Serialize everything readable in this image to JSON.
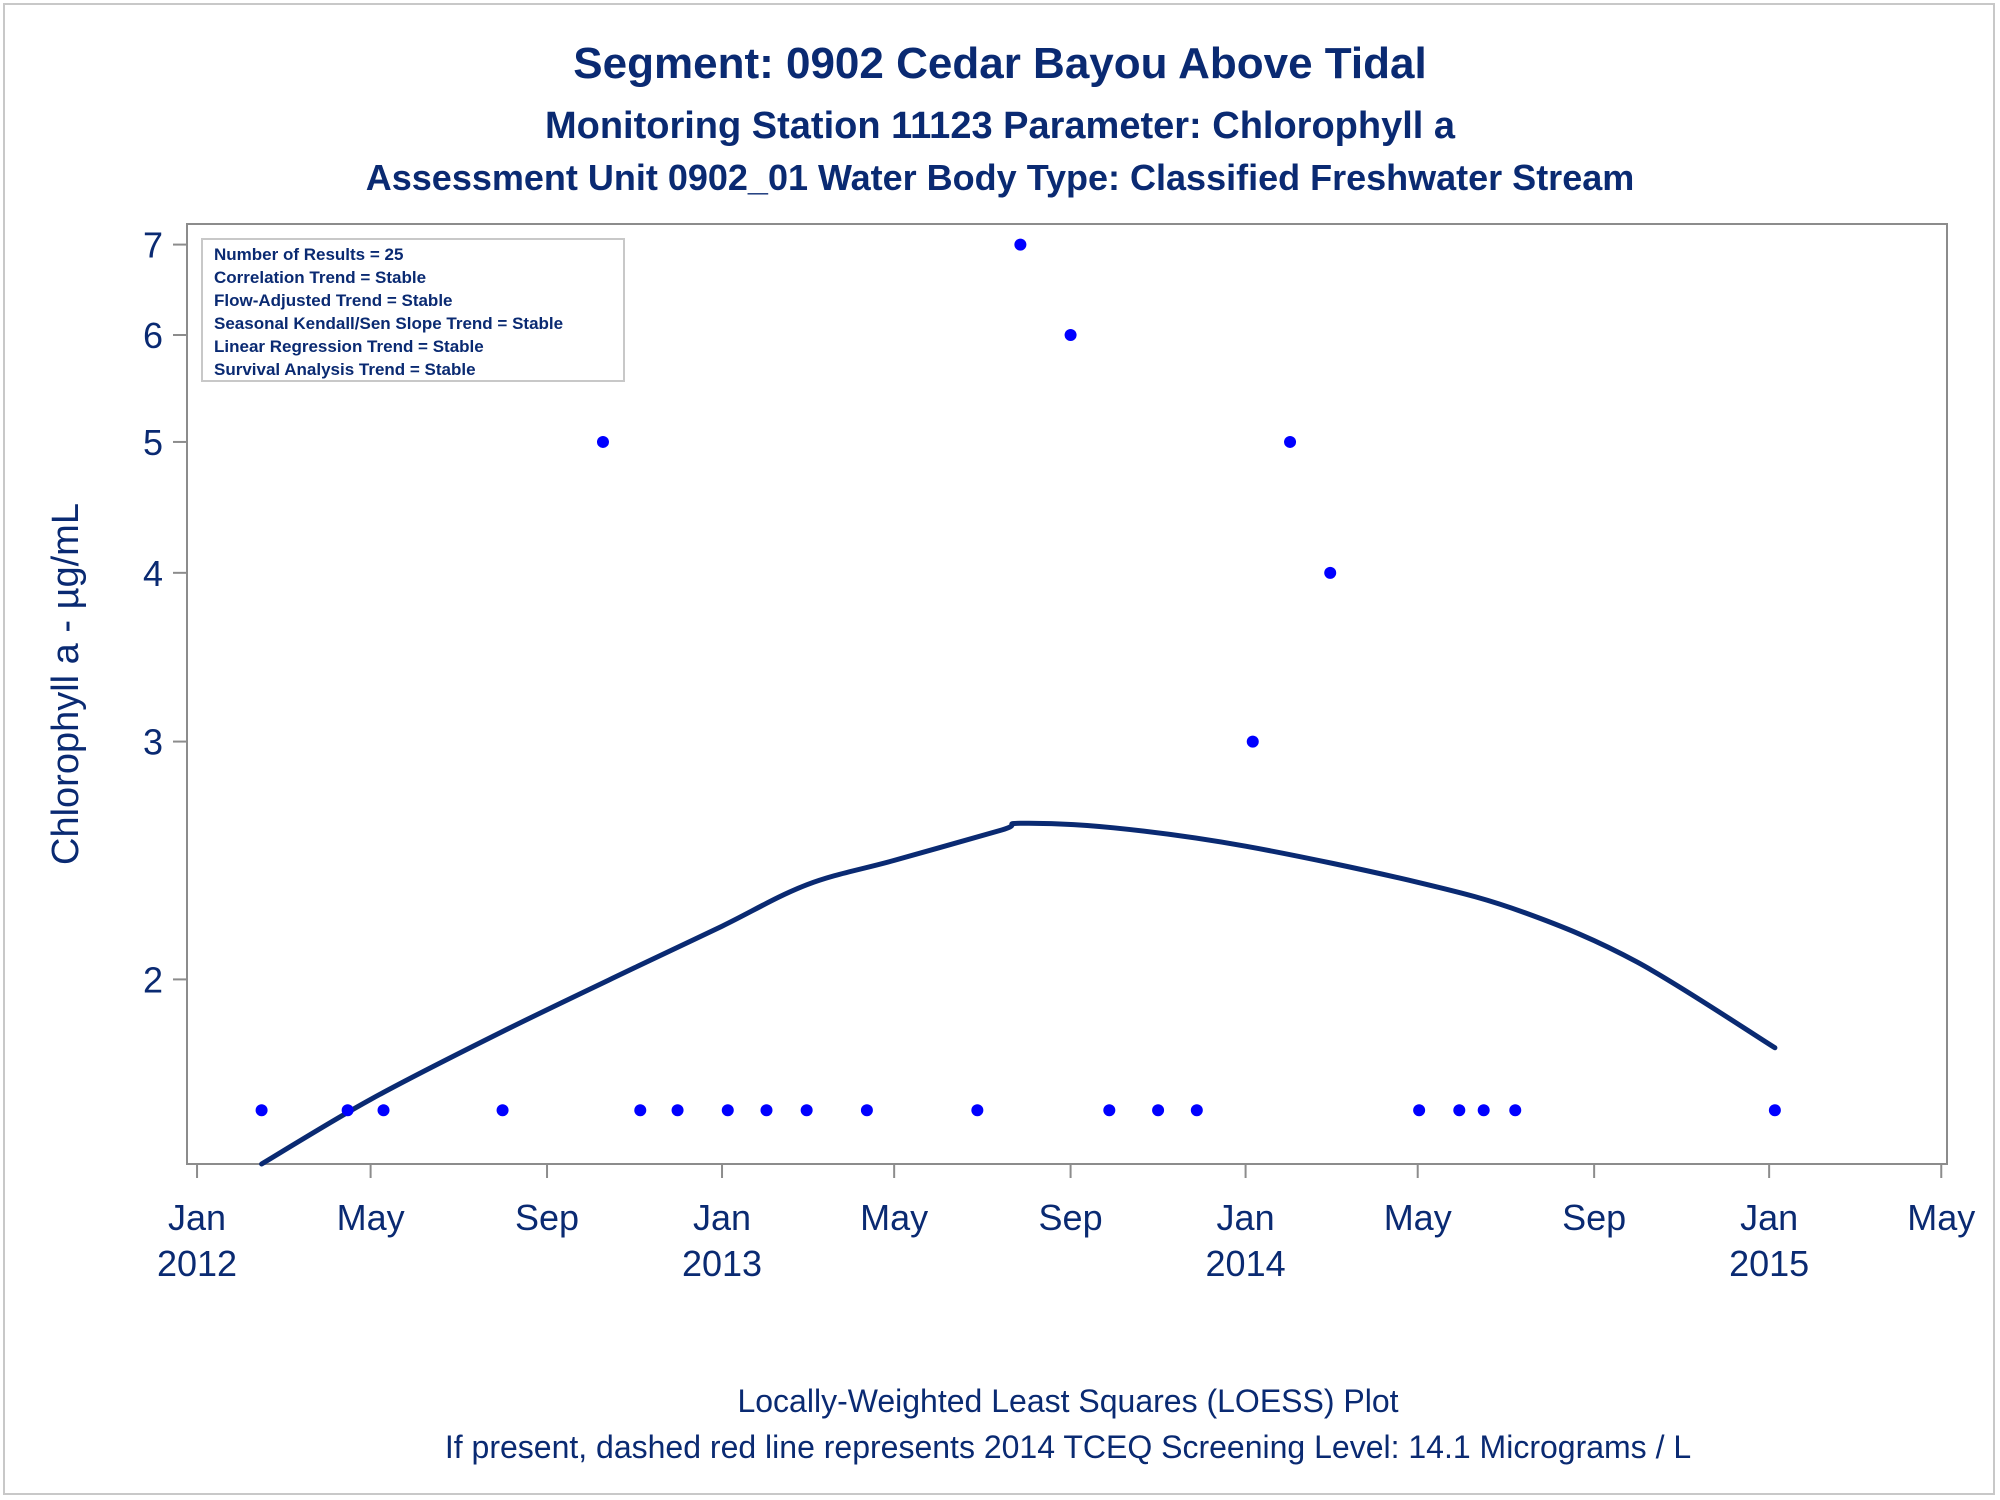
{
  "titles": {
    "line1": "Segment: 0902  Cedar Bayou Above Tidal",
    "line2": "Monitoring Station 11123 Parameter: Chlorophyll a",
    "line3": "Assessment Unit 0902_01   Water Body Type: Classified Freshwater Stream"
  },
  "stats": [
    "Number of Results = 25",
    "Correlation Trend = Stable",
    "Flow-Adjusted Trend = Stable",
    "Seasonal Kendall/Sen Slope Trend = Stable",
    "Linear Regression Trend = Stable",
    "Survival Analysis Trend = Stable"
  ],
  "footnotes": {
    "line1": "Locally-Weighted Least Squares (LOESS) Plot",
    "line2": "If present, dashed red line represents 2014 TCEQ Screening Level: 14.1 Micrograms / L"
  },
  "colors": {
    "text": "#0a2a72",
    "points": "#0000ff",
    "loess": "#0a2a72",
    "axis": "#8c8c8c"
  },
  "chart_data": {
    "type": "scatter",
    "ylabel": "Chlorophyll a -  µg/mL",
    "xlabel": "",
    "yscale": "log",
    "ylim": [
      1.46,
      7.25
    ],
    "xlim": [
      "2011-12-25",
      "2015-05-05"
    ],
    "yticks": [
      2,
      3,
      4,
      5,
      6,
      7
    ],
    "xticks": [
      {
        "date": "2012-01-01",
        "label": "Jan",
        "year": "2012"
      },
      {
        "date": "2012-05-01",
        "label": "May",
        "year": ""
      },
      {
        "date": "2012-09-01",
        "label": "Sep",
        "year": ""
      },
      {
        "date": "2013-01-01",
        "label": "Jan",
        "year": "2013"
      },
      {
        "date": "2013-05-01",
        "label": "May",
        "year": ""
      },
      {
        "date": "2013-09-01",
        "label": "Sep",
        "year": ""
      },
      {
        "date": "2014-01-01",
        "label": "Jan",
        "year": "2014"
      },
      {
        "date": "2014-05-01",
        "label": "May",
        "year": ""
      },
      {
        "date": "2014-09-01",
        "label": "Sep",
        "year": ""
      },
      {
        "date": "2015-01-01",
        "label": "Jan",
        "year": "2015"
      },
      {
        "date": "2015-05-01",
        "label": "May",
        "year": ""
      }
    ],
    "series": [
      {
        "type": "scatter",
        "points": [
          {
            "x": "2012-02-15",
            "y": 1.6
          },
          {
            "x": "2012-04-15",
            "y": 1.6
          },
          {
            "x": "2012-05-10",
            "y": 1.6
          },
          {
            "x": "2012-08-01",
            "y": 1.6
          },
          {
            "x": "2012-10-10",
            "y": 5
          },
          {
            "x": "2012-11-05",
            "y": 1.6
          },
          {
            "x": "2012-12-01",
            "y": 1.6
          },
          {
            "x": "2013-01-05",
            "y": 1.6
          },
          {
            "x": "2013-02-01",
            "y": 1.6
          },
          {
            "x": "2013-03-01",
            "y": 1.6
          },
          {
            "x": "2013-04-12",
            "y": 1.6
          },
          {
            "x": "2013-06-28",
            "y": 1.6
          },
          {
            "x": "2013-07-28",
            "y": 7
          },
          {
            "x": "2013-09-01",
            "y": 6
          },
          {
            "x": "2013-09-28",
            "y": 1.6
          },
          {
            "x": "2013-11-01",
            "y": 1.6
          },
          {
            "x": "2013-11-28",
            "y": 1.6
          },
          {
            "x": "2014-01-06",
            "y": 3
          },
          {
            "x": "2014-02-01",
            "y": 5
          },
          {
            "x": "2014-03-01",
            "y": 4
          },
          {
            "x": "2014-05-02",
            "y": 1.6
          },
          {
            "x": "2014-05-30",
            "y": 1.6
          },
          {
            "x": "2014-06-16",
            "y": 1.6
          },
          {
            "x": "2014-07-08",
            "y": 1.6
          },
          {
            "x": "2015-01-05",
            "y": 1.6
          }
        ]
      },
      {
        "type": "line",
        "points": [
          {
            "x": "2012-02-15",
            "y": 1.46
          },
          {
            "x": "2012-05-01",
            "y": 1.63
          },
          {
            "x": "2012-08-01",
            "y": 1.83
          },
          {
            "x": "2012-11-01",
            "y": 2.04
          },
          {
            "x": "2013-01-01",
            "y": 2.19
          },
          {
            "x": "2013-03-01",
            "y": 2.35
          },
          {
            "x": "2013-05-01",
            "y": 2.45
          },
          {
            "x": "2013-07-15",
            "y": 2.58
          },
          {
            "x": "2013-07-28",
            "y": 2.61
          },
          {
            "x": "2013-10-01",
            "y": 2.59
          },
          {
            "x": "2014-01-01",
            "y": 2.51
          },
          {
            "x": "2014-05-01",
            "y": 2.36
          },
          {
            "x": "2014-07-15",
            "y": 2.24
          },
          {
            "x": "2014-10-01",
            "y": 2.06
          },
          {
            "x": "2015-01-05",
            "y": 1.78
          }
        ]
      }
    ]
  }
}
